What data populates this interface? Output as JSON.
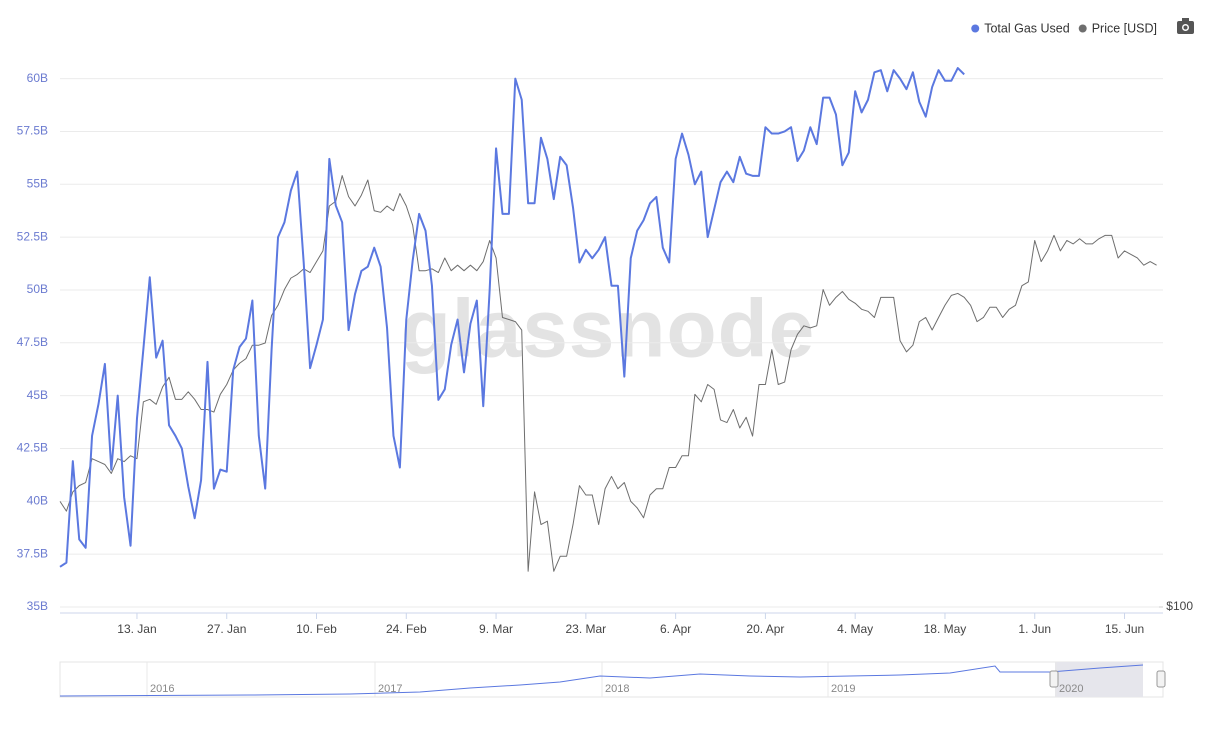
{
  "chart_data": {
    "type": "line",
    "watermark": "glassnode",
    "x": [
      1,
      2,
      3,
      4,
      5,
      6,
      7,
      8,
      9,
      10,
      11,
      12,
      13,
      14,
      15,
      16,
      17,
      18,
      19,
      20,
      21,
      22,
      23,
      24,
      25,
      26,
      27,
      28,
      29,
      30,
      31,
      32,
      33,
      34,
      35,
      36,
      37,
      38,
      39,
      40,
      41,
      42,
      43,
      44,
      45,
      46,
      47,
      48,
      49,
      50,
      51,
      52,
      53,
      54,
      55,
      56,
      57,
      58,
      59,
      60,
      61,
      62,
      63,
      64,
      65,
      66,
      67,
      68,
      69,
      70,
      71,
      72,
      73,
      74,
      75,
      76,
      77,
      78,
      79,
      80,
      81,
      82,
      83,
      84,
      85,
      86,
      87,
      88,
      89,
      90,
      91,
      92,
      93,
      94,
      95,
      96,
      97,
      98,
      99,
      100,
      101,
      102,
      103,
      104,
      105,
      106,
      107,
      108,
      109,
      110,
      111,
      112,
      113,
      114,
      115,
      116,
      117,
      118,
      119,
      120,
      121,
      122,
      123,
      124,
      125,
      126,
      127,
      128,
      129,
      130,
      131,
      132,
      133,
      134,
      135,
      136,
      137,
      138,
      139,
      140,
      141,
      142,
      143,
      144,
      145,
      146,
      147,
      148,
      149,
      150,
      151,
      152,
      153,
      154,
      155,
      156,
      157,
      158,
      159,
      160,
      161,
      162,
      163,
      164,
      165,
      166,
      167,
      168,
      169,
      170,
      171,
      172
    ],
    "xlim": [
      1,
      173
    ],
    "xticks": [
      {
        "value": 13,
        "label": "13. Jan"
      },
      {
        "value": 27,
        "label": "27. Jan"
      },
      {
        "value": 41,
        "label": "10. Feb"
      },
      {
        "value": 55,
        "label": "24. Feb"
      },
      {
        "value": 69,
        "label": "9. Mar"
      },
      {
        "value": 83,
        "label": "23. Mar"
      },
      {
        "value": 97,
        "label": "6. Apr"
      },
      {
        "value": 111,
        "label": "20. Apr"
      },
      {
        "value": 125,
        "label": "4. May"
      },
      {
        "value": 139,
        "label": "18. May"
      },
      {
        "value": 153,
        "label": "1. Jun"
      },
      {
        "value": 167,
        "label": "15. Jun"
      }
    ],
    "ylim": [
      35,
      62.3
    ],
    "yticks": [
      {
        "value": 35,
        "label": "35B"
      },
      {
        "value": 37.5,
        "label": "37.5B"
      },
      {
        "value": 40,
        "label": "40B"
      },
      {
        "value": 42.5,
        "label": "42.5B"
      },
      {
        "value": 45,
        "label": "45B"
      },
      {
        "value": 47.5,
        "label": "47.5B"
      },
      {
        "value": 50,
        "label": "50B"
      },
      {
        "value": 52.5,
        "label": "52.5B"
      },
      {
        "value": 55,
        "label": "55B"
      },
      {
        "value": 57.5,
        "label": "57.5B"
      },
      {
        "value": 60,
        "label": "60B"
      }
    ],
    "y2lim": [
      100,
      402
    ],
    "y2log": true,
    "y2ticks": [
      {
        "value": 100,
        "label": "$100"
      }
    ],
    "grid": true,
    "legend": "top-right",
    "series": [
      {
        "name": "Total Gas Used",
        "color": "#5b78e0",
        "values": [
          36.9,
          37.1,
          41.9,
          38.2,
          37.8,
          43.1,
          44.6,
          46.5,
          41.5,
          45.0,
          40.2,
          37.9,
          43.9,
          47.2,
          50.6,
          46.8,
          47.6,
          43.6,
          43.1,
          42.5,
          40.7,
          39.2,
          41.0,
          46.6,
          40.6,
          41.5,
          41.4,
          46.2,
          47.3,
          47.7,
          49.5,
          43.1,
          40.6,
          47.2,
          52.5,
          53.2,
          54.7,
          55.6,
          51.3,
          46.3,
          47.4,
          48.6,
          56.2,
          54.0,
          53.2,
          48.1,
          49.8,
          50.9,
          51.1,
          52.0,
          51.1,
          48.2,
          43.1,
          41.6,
          48.6,
          51.4,
          53.6,
          52.8,
          50.2,
          44.8,
          45.3,
          47.4,
          48.6,
          46.1,
          48.4,
          49.5,
          44.5,
          50.0,
          56.7,
          53.6,
          53.6,
          60.0,
          59.0,
          54.1,
          54.1,
          57.2,
          56.2,
          54.3,
          56.3,
          55.9,
          53.9,
          51.3,
          51.9,
          51.5,
          51.9,
          52.5,
          50.2,
          50.2,
          45.9,
          51.5,
          52.8,
          53.3,
          54.1,
          54.4,
          52.0,
          51.3,
          56.2,
          57.4,
          56.4,
          55.0,
          55.6,
          52.5,
          53.8,
          55.1,
          55.6,
          55.1,
          56.3,
          55.5,
          55.4,
          55.4,
          57.7,
          57.4,
          57.4,
          57.5,
          57.7,
          56.1,
          56.6,
          57.7,
          56.9,
          59.1,
          59.1,
          58.3,
          55.9,
          56.5,
          59.4,
          58.4,
          59.0,
          60.3,
          60.4,
          59.4,
          60.4,
          60.0,
          59.5,
          60.3,
          58.9,
          58.2,
          59.6,
          60.4,
          59.9,
          59.9,
          60.5,
          60.2,
          null,
          null,
          null,
          null,
          null,
          null,
          null,
          null,
          null,
          null,
          null,
          null,
          null,
          null,
          null,
          null,
          null,
          null,
          null,
          null,
          null,
          null,
          null,
          null,
          null,
          null,
          null,
          null,
          null,
          null
        ]
      },
      {
        "name": "Price [USD]",
        "color": "#6e6e6e",
        "axis": "y2",
        "values": [
          129,
          126,
          132,
          134,
          135,
          143,
          142,
          141,
          138,
          143,
          142,
          144,
          143,
          164,
          165,
          163,
          170,
          174,
          165,
          165,
          168,
          165,
          161,
          161,
          160,
          167,
          171,
          177,
          180,
          182,
          188,
          188,
          189,
          202,
          207,
          215,
          221,
          223,
          226,
          224,
          230,
          236,
          263,
          266,
          283,
          269,
          263,
          270,
          280,
          260,
          259,
          263,
          260,
          271,
          263,
          251,
          225,
          225,
          226,
          224,
          232,
          225,
          228,
          225,
          228,
          225,
          230,
          242,
          232,
          201,
          200,
          199,
          195,
          109,
          132,
          122,
          123,
          109,
          113,
          113,
          122,
          134,
          131,
          131,
          122,
          133,
          137,
          133,
          135,
          129,
          127,
          124,
          131,
          133,
          133,
          140,
          140,
          144,
          144,
          167,
          164,
          171,
          169,
          157,
          156,
          161,
          154,
          158,
          151,
          171,
          171,
          186,
          171,
          172,
          186,
          193,
          197,
          196,
          197,
          215,
          207,
          211,
          214,
          210,
          208,
          205,
          204,
          201,
          211,
          211,
          211,
          190,
          185,
          188,
          199,
          201,
          195,
          201,
          207,
          212,
          213,
          211,
          207,
          199,
          201,
          206,
          206,
          201,
          205,
          207,
          217,
          219,
          242,
          230,
          236,
          245,
          236,
          242,
          240,
          243,
          240,
          240,
          243,
          245,
          245,
          232,
          236,
          234,
          232,
          228,
          230,
          228
        ]
      }
    ],
    "navigator_labels": [
      "2016",
      "2017",
      "2018",
      "2019",
      "2020"
    ]
  }
}
